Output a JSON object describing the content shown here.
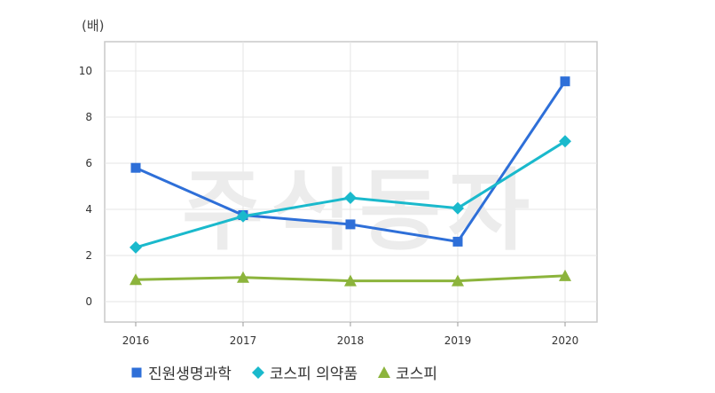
{
  "chart_data": {
    "type": "line",
    "unit_label": "(배)",
    "watermark": "주식동자",
    "x": [
      "2016",
      "2017",
      "2018",
      "2019",
      "2020"
    ],
    "ylim": [
      0,
      10
    ],
    "yticks": [
      0,
      2,
      4,
      6,
      8,
      10
    ],
    "grid": true,
    "legend_position": "bottom",
    "series": [
      {
        "name": "진원생명과학",
        "values": [
          5.8,
          3.75,
          3.35,
          2.6,
          9.55
        ],
        "color": "#2e6fd8",
        "marker": "square"
      },
      {
        "name": "코스피 의약품",
        "values": [
          2.35,
          3.7,
          4.5,
          4.05,
          6.95
        ],
        "color": "#1ab9cc",
        "marker": "diamond"
      },
      {
        "name": "코스피",
        "values": [
          0.95,
          1.05,
          0.9,
          0.9,
          1.12
        ],
        "color": "#8cb43c",
        "marker": "triangle"
      }
    ]
  }
}
